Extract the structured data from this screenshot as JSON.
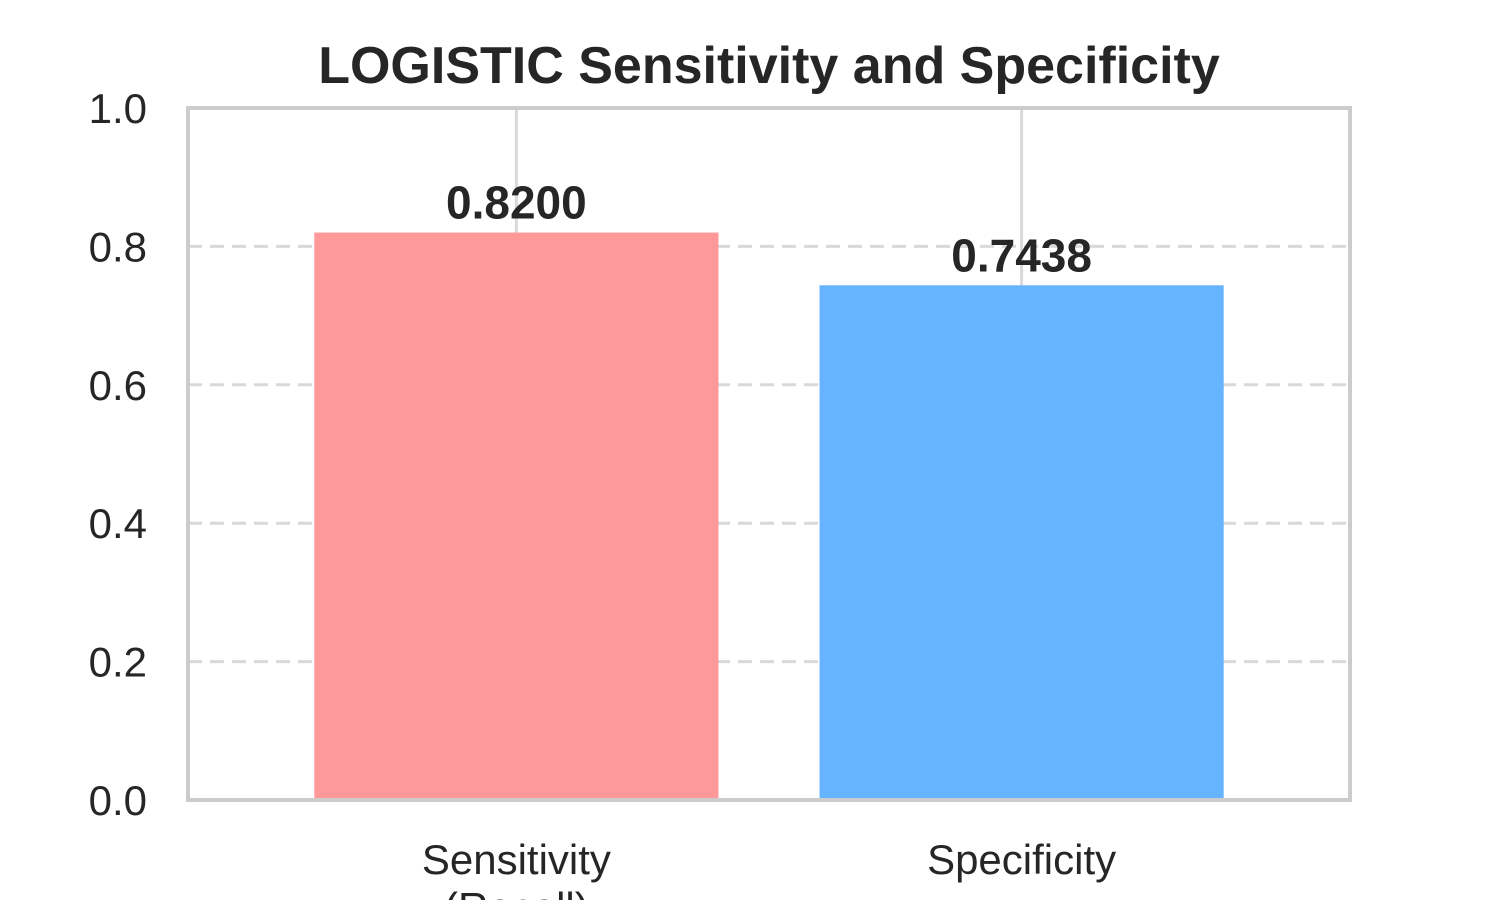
{
  "chart_data": {
    "type": "bar",
    "title": "LOGISTIC Sensitivity and Specificity",
    "xlabel": "",
    "ylabel": "",
    "categories": [
      "Sensitivity\n(Recall)",
      "Specificity"
    ],
    "values": [
      0.82,
      0.7438
    ],
    "value_labels": [
      "0.8200",
      "0.7438"
    ],
    "ylim": [
      0,
      1.0
    ],
    "yticks": [
      0.0,
      0.2,
      0.4,
      0.6,
      0.8,
      1.0
    ],
    "ytick_labels": [
      "0.0",
      "0.2",
      "0.4",
      "0.6",
      "0.8",
      "1.0"
    ],
    "grid": {
      "horizontal": "dashed",
      "vertical": "solid"
    },
    "colors": [
      "#ff9999",
      "#66b3ff"
    ],
    "frame_color": "#cccccc",
    "grid_color": "#d9d9d9"
  }
}
